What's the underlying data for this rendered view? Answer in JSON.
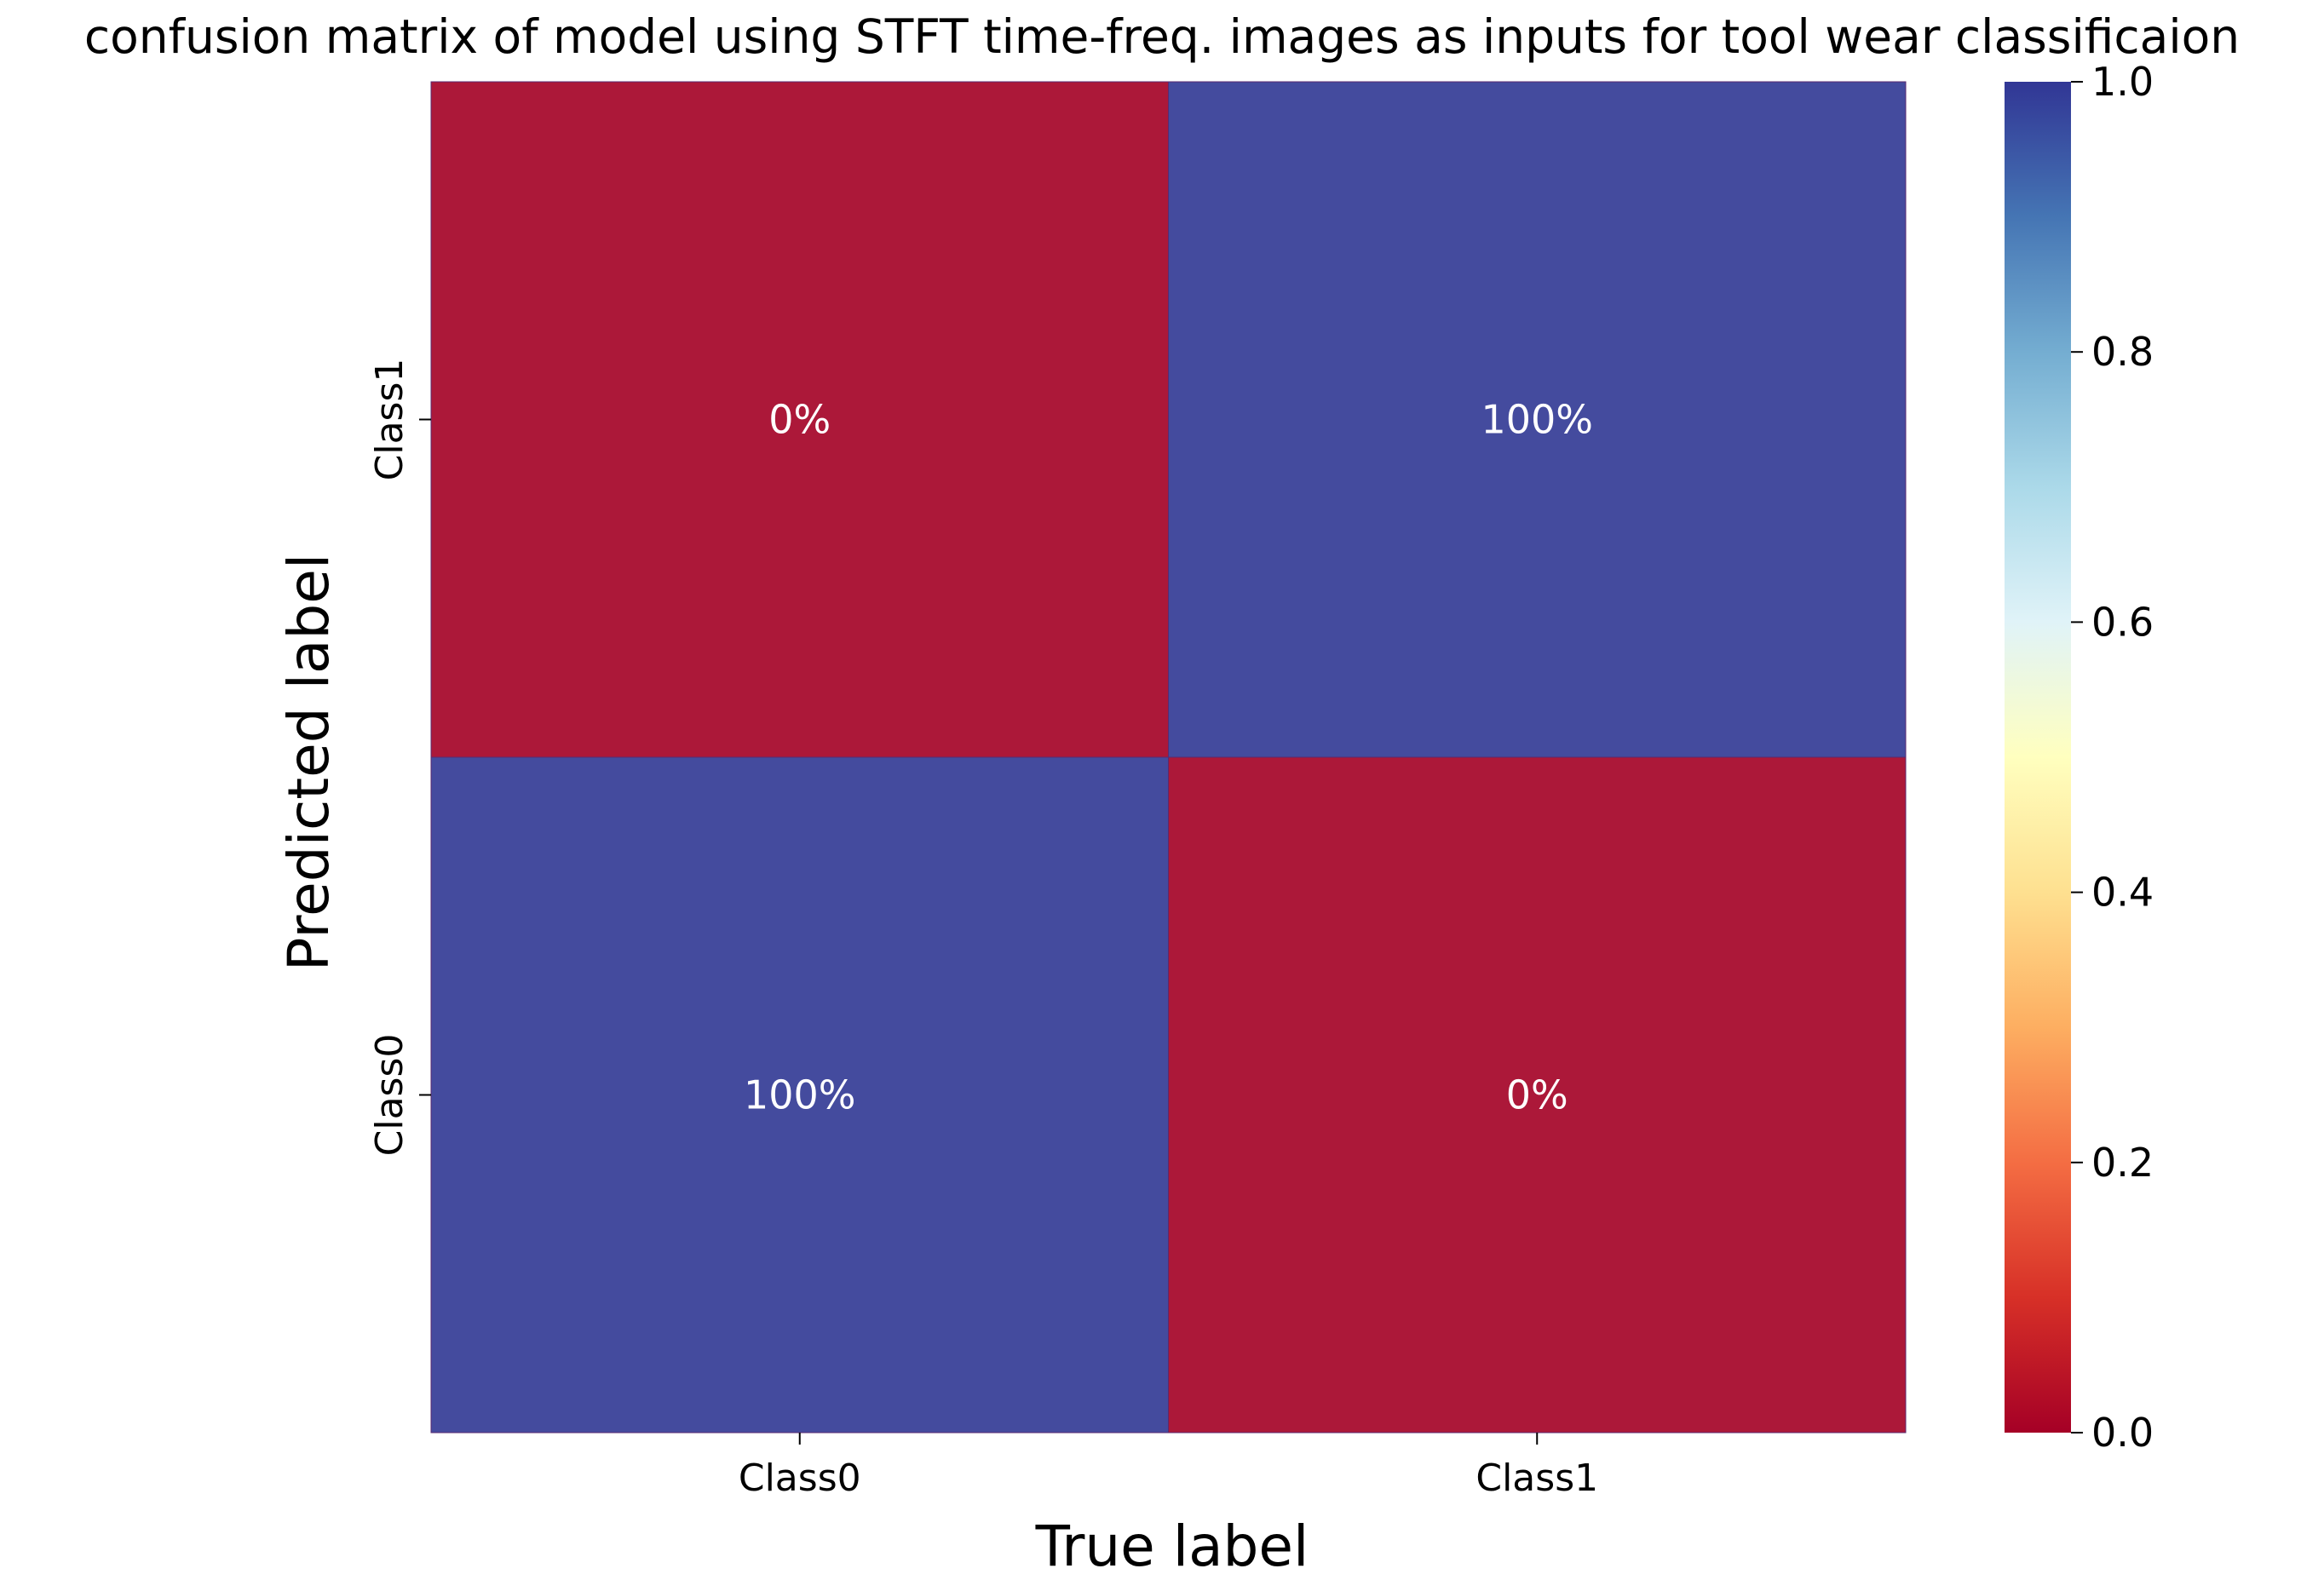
{
  "chart_data": {
    "type": "heatmap",
    "title": "confusion matrix of model using STFT time-freq. images as inputs for tool wear classificaion",
    "xlabel": "True label",
    "ylabel": "Predicted label",
    "x_categories": [
      "Class0",
      "Class1"
    ],
    "y_categories_top_to_bottom": [
      "Class1",
      "Class0"
    ],
    "values": [
      [
        0.0,
        1.0
      ],
      [
        1.0,
        0.0
      ]
    ],
    "annotations": [
      [
        "0%",
        "100%"
      ],
      [
        "100%",
        "0%"
      ]
    ],
    "colorscale": "RdYlBu",
    "vmin": 0.0,
    "vmax": 1.0,
    "colorbar_ticks": [
      "0.0",
      "0.2",
      "0.4",
      "0.6",
      "0.8",
      "1.0"
    ]
  }
}
